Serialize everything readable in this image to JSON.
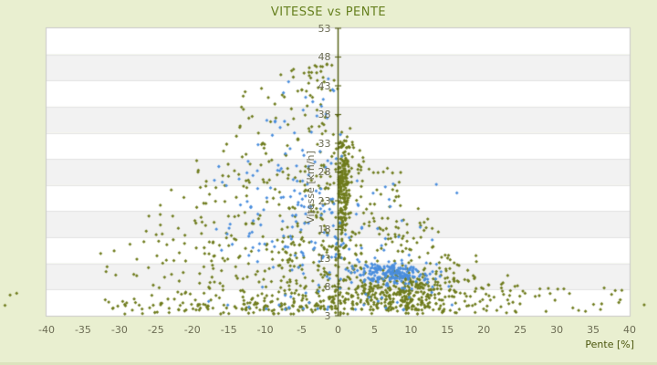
{
  "window": {
    "background": "#e9efd0"
  },
  "chart_data": {
    "type": "scatter",
    "title": "VITESSE vs PENTE",
    "xlabel": "Pente [%]",
    "ylabel": "Vitesse [km/h]",
    "xlim": [
      -40,
      40
    ],
    "ylim": [
      3,
      53
    ],
    "x_ticks": [
      -40,
      -35,
      -30,
      -25,
      -20,
      -15,
      -10,
      -5,
      0,
      5,
      10,
      15,
      20,
      25,
      30,
      35,
      40
    ],
    "y_ticks": [
      3,
      8,
      13,
      18,
      23,
      28,
      33,
      38,
      43,
      48,
      53
    ],
    "grid": "alternating-horizontal-bands",
    "legend": "none",
    "marker": "diamond",
    "axis_zero_line": true,
    "colors": {
      "series1": "#6f7c1d",
      "series2": "#4a8ede",
      "axis_line": "#515c0e",
      "tick_text": "#6c6c54",
      "title_text": "#66801f",
      "band_white": "#ffffff",
      "band_gray": "#f2f2f2",
      "band_edge": "#e4e4e4",
      "plot_border": "#c9c9c9",
      "background": "#e9efd0"
    },
    "seed": 1337,
    "series": [
      {
        "name": "series-1-olive",
        "color": "#6f7c1d",
        "clusters": [
          {
            "n": 200,
            "slope": {
              "d": "n",
              "m": 0.7,
              "s": 0.5,
              "lo": 0.05,
              "hi": 2.3
            },
            "speed": {
              "d": "n",
              "m": 25,
              "s": 5.5,
              "lo": 13,
              "hi": 33.5
            }
          },
          {
            "n": 130,
            "slope": {
              "d": "u",
              "lo": -3,
              "hi": 0
            },
            "speed": {
              "d": "p",
              "lo": 4,
              "hi": 47,
              "k": 1.5
            }
          },
          {
            "n": 150,
            "slope": {
              "d": "u",
              "lo": -8,
              "hi": -3
            },
            "speed": {
              "d": "p",
              "lo": 4,
              "hi": 47,
              "k": 1.6
            }
          },
          {
            "n": 120,
            "slope": {
              "d": "u",
              "lo": -14,
              "hi": -8
            },
            "speed": {
              "d": "p",
              "lo": 4,
              "hi": 43,
              "k": 1.6
            }
          },
          {
            "n": 80,
            "slope": {
              "d": "u",
              "lo": -20,
              "hi": -14
            },
            "speed": {
              "d": "p",
              "lo": 4,
              "hi": 34,
              "k": 1.5
            }
          },
          {
            "n": 45,
            "slope": {
              "d": "u",
              "lo": -27,
              "hi": -20
            },
            "speed": {
              "d": "p",
              "lo": 4,
              "hi": 25,
              "k": 1.3
            }
          },
          {
            "n": 20,
            "slope": {
              "d": "u",
              "lo": -33,
              "hi": -27
            },
            "speed": {
              "d": "p",
              "lo": 4,
              "hi": 16,
              "k": 1.2
            }
          },
          {
            "n": 100,
            "slope": {
              "d": "u",
              "lo": 0,
              "hi": 4
            },
            "speed": {
              "d": "p",
              "lo": 4,
              "hi": 36,
              "k": 1.4
            }
          },
          {
            "n": 110,
            "slope": {
              "d": "u",
              "lo": 4,
              "hi": 9
            },
            "speed": {
              "d": "p",
              "lo": 4,
              "hi": 29,
              "k": 1.5
            }
          },
          {
            "n": 90,
            "slope": {
              "d": "u",
              "lo": 9,
              "hi": 14
            },
            "speed": {
              "d": "p",
              "lo": 4,
              "hi": 22,
              "k": 1.6
            }
          },
          {
            "n": 55,
            "slope": {
              "d": "u",
              "lo": 14,
              "hi": 19
            },
            "speed": {
              "d": "p",
              "lo": 3.5,
              "hi": 14,
              "k": 1.4
            }
          },
          {
            "n": 35,
            "slope": {
              "d": "u",
              "lo": 19,
              "hi": 26
            },
            "speed": {
              "d": "p",
              "lo": 3.5,
              "hi": 10,
              "k": 1.2
            }
          },
          {
            "n": 22,
            "slope": {
              "d": "u",
              "lo": 26,
              "hi": 40
            },
            "speed": {
              "d": "p",
              "lo": 3.5,
              "hi": 8,
              "k": 1.1
            }
          },
          {
            "n": 230,
            "slope": {
              "d": "n",
              "m": 8,
              "s": 4.5,
              "lo": -1,
              "hi": 19
            },
            "speed": {
              "d": "n",
              "m": 7,
              "s": 1.6,
              "lo": 4,
              "hi": 11
            }
          },
          {
            "n": 60,
            "slope": {
              "d": "u",
              "lo": -30,
              "hi": 14
            },
            "speed": {
              "d": "p",
              "lo": 3.3,
              "hi": 8,
              "k": 2.2
            }
          }
        ],
        "outliers": [
          [
            -45,
            6.6
          ],
          [
            -44.1,
            6.9
          ],
          [
            -45.7,
            4.8
          ],
          [
            42,
            4.9
          ]
        ]
      },
      {
        "name": "series-2-blue",
        "color": "#4a8ede",
        "clusters": [
          {
            "n": 200,
            "slope": {
              "d": "n",
              "m": 7.5,
              "s": 3,
              "lo": 0.5,
              "hi": 16
            },
            "speed": {
              "d": "n",
              "m": 10.3,
              "s": 1.0,
              "lo": 7.5,
              "hi": 13
            }
          },
          {
            "n": 60,
            "slope": {
              "d": "u",
              "lo": -5,
              "hi": 0.5
            },
            "speed": {
              "d": "p",
              "lo": 13,
              "hi": 46,
              "k": 1.4
            }
          },
          {
            "n": 45,
            "slope": {
              "d": "u",
              "lo": -11,
              "hi": -5
            },
            "speed": {
              "d": "p",
              "lo": 13,
              "hi": 44,
              "k": 1.3
            }
          },
          {
            "n": 25,
            "slope": {
              "d": "u",
              "lo": -17,
              "hi": -11
            },
            "speed": {
              "d": "p",
              "lo": 12,
              "hi": 34,
              "k": 1.2
            }
          },
          {
            "n": 95,
            "slope": {
              "d": "n",
              "m": 0,
              "s": 8,
              "lo": -26,
              "hi": 18
            },
            "speed": {
              "d": "p",
              "lo": 4,
              "hi": 27,
              "k": 1.6
            }
          }
        ],
        "outliers": []
      }
    ]
  }
}
